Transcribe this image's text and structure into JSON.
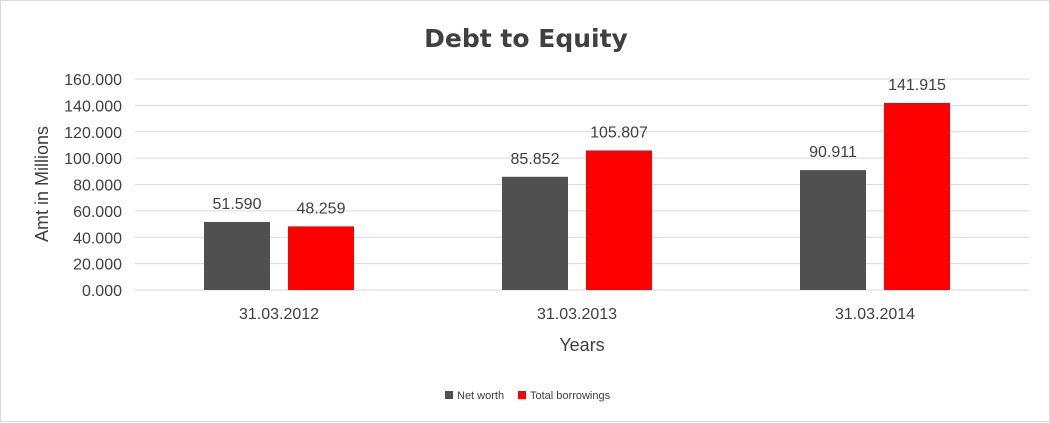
{
  "chart_data": {
    "type": "bar",
    "title": "Debt to Equity",
    "xlabel": "Years",
    "ylabel": "Amt in Millions",
    "categories": [
      "31.03.2012",
      "31.03.2013",
      "31.03.2014"
    ],
    "series": [
      {
        "name": "Net worth",
        "values": [
          51.59,
          85.852,
          90.911
        ],
        "labels": [
          "51.590",
          "85.852",
          "90.911"
        ],
        "color": "#505050"
      },
      {
        "name": "Total borrowings",
        "values": [
          48.259,
          105.807,
          141.915
        ],
        "labels": [
          "48.259",
          "105.807",
          "141.915"
        ],
        "color": "#ff0000"
      }
    ],
    "ylim": [
      0,
      160
    ],
    "yticks": [
      "0.000",
      "20.000",
      "40.000",
      "60.000",
      "80.000",
      "100.000",
      "120.000",
      "140.000",
      "160.000"
    ],
    "grid": true,
    "legend_position": "bottom"
  }
}
